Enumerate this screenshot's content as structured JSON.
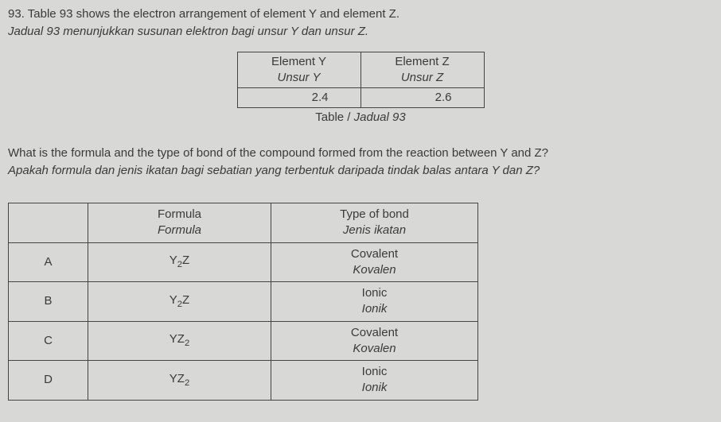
{
  "question": {
    "number": "93.",
    "line1_en": "Table 93 shows the electron arrangement of element Y and element Z.",
    "line2_ms": "Jadual 93 menunjukkan susunan elektron bagi unsur Y dan unsur Z."
  },
  "table93": {
    "headers": {
      "y_en": "Element Y",
      "y_ms": "Unsur Y",
      "z_en": "Element Z",
      "z_ms": "Unsur Z"
    },
    "values": {
      "y": "2.4",
      "z": "2.6"
    },
    "caption_en": "Table / ",
    "caption_ms": "Jadual 93"
  },
  "prompt": {
    "en": "What is the formula and the type of bond of the compound formed from the reaction between Y and Z?",
    "ms": "Apakah formula dan jenis ikatan bagi sebatian yang terbentuk daripada tindak balas antara Y dan Z?"
  },
  "answers": {
    "headers": {
      "formula_en": "Formula",
      "formula_ms": "Formula",
      "bond_en": "Type of bond",
      "bond_ms": "Jenis ikatan"
    },
    "rows": [
      {
        "label": "A",
        "formula_html": "Y<sub>2</sub>Z",
        "bond_en": "Covalent",
        "bond_ms": "Kovalen"
      },
      {
        "label": "B",
        "formula_html": "Y<sub>2</sub>Z",
        "bond_en": "Ionic",
        "bond_ms": "Ionik"
      },
      {
        "label": "C",
        "formula_html": "YZ<sub>2</sub>",
        "bond_en": "Covalent",
        "bond_ms": "Kovalen"
      },
      {
        "label": "D",
        "formula_html": "YZ<sub>2</sub>",
        "bond_en": "Ionic",
        "bond_ms": "Ionik"
      }
    ]
  },
  "colors": {
    "background": "#d8d8d6",
    "text": "#3a3a3a",
    "border": "#444444"
  }
}
